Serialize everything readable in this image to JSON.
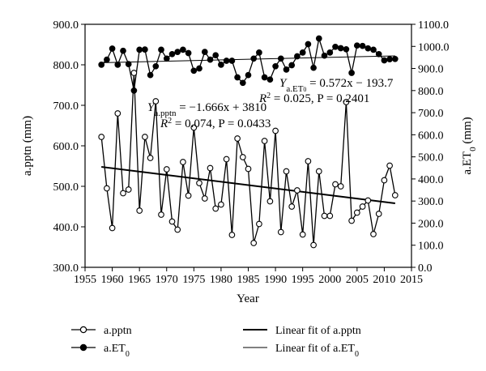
{
  "chart_data": {
    "type": "line",
    "x": [
      1958,
      1959,
      1960,
      1961,
      1962,
      1963,
      1964,
      1965,
      1966,
      1967,
      1968,
      1969,
      1970,
      1971,
      1972,
      1973,
      1974,
      1975,
      1976,
      1977,
      1978,
      1979,
      1980,
      1981,
      1982,
      1983,
      1984,
      1985,
      1986,
      1987,
      1988,
      1989,
      1990,
      1991,
      1992,
      1993,
      1994,
      1995,
      1996,
      1997,
      1998,
      1999,
      2000,
      2001,
      2002,
      2003,
      2004,
      2005,
      2006,
      2007,
      2008,
      2009,
      2010,
      2011,
      2012
    ],
    "series": [
      {
        "name": "a.pptn",
        "axis": "left",
        "marker": "open-circle",
        "values": [
          622,
          495,
          397,
          680,
          483,
          492,
          780,
          440,
          622,
          570,
          710,
          430,
          542,
          413,
          393,
          560,
          477,
          645,
          508,
          470,
          545,
          445,
          455,
          567,
          380,
          618,
          572,
          543,
          360,
          407,
          612,
          463,
          637,
          387,
          537,
          450,
          490,
          381,
          562,
          355,
          537,
          427,
          427,
          505,
          500,
          708,
          415,
          435,
          450,
          465,
          382,
          432,
          515,
          551,
          478
        ]
      },
      {
        "name": "a.ET0",
        "axis": "right",
        "marker": "filled-circle",
        "values": [
          917,
          940,
          990,
          917,
          980,
          920,
          800,
          985,
          986,
          870,
          910,
          985,
          945,
          965,
          975,
          985,
          970,
          890,
          900,
          975,
          940,
          960,
          917,
          935,
          935,
          860,
          835,
          870,
          945,
          972,
          860,
          850,
          910,
          945,
          895,
          915,
          955,
          972,
          1010,
          903,
          1036,
          958,
          972,
          998,
          992,
          987,
          880,
          1004,
          1002,
          991,
          985,
          965,
          937,
          942,
          943
        ]
      }
    ],
    "fits": [
      {
        "name": "Linear fit of a.pptn",
        "of": "a.pptn",
        "slope": -1.666,
        "intercept": 3810
      },
      {
        "name": "Linear fit of a.ET0",
        "of": "a.ET0",
        "slope": 0.572,
        "intercept": -193.7
      }
    ],
    "xlabel": "Year",
    "ylabel_left": "a.pptn (mm)",
    "ylabel_right": "a.ET0 (mm)",
    "xlim": [
      1955,
      2015
    ],
    "ylim_left": [
      300,
      900
    ],
    "ylim_right": [
      0,
      1100
    ],
    "xticks": [
      1955,
      1960,
      1965,
      1970,
      1975,
      1980,
      1985,
      1990,
      1995,
      2000,
      2005,
      2010,
      2015
    ],
    "xtick_labels": [
      "1955",
      "1960",
      "1965",
      "1970",
      "1975",
      "1980",
      "1985",
      "1990",
      "1995",
      "2000",
      "2005",
      "2010",
      "2015"
    ],
    "yticks_left": [
      300,
      400,
      500,
      600,
      700,
      800,
      900
    ],
    "ytick_labels_left": [
      "300.0",
      "400.0",
      "500.0",
      "600.0",
      "700.0",
      "800.0",
      "900.0"
    ],
    "yticks_right": [
      0,
      100,
      200,
      300,
      400,
      500,
      600,
      700,
      800,
      900,
      1000,
      1100
    ],
    "ytick_labels_right": [
      "0.0",
      "100.0",
      "200.0",
      "300.0",
      "400.0",
      "500.0",
      "600.0",
      "700.0",
      "800.0",
      "900.0",
      "1000.0",
      "1100.0"
    ],
    "annotations": {
      "et0_eq_prefix": "Y",
      "et0_eq_sub": "a.ET",
      "et0_eq_subsub": "0",
      "et0_eq_rhs": " = 0.572x − 193.7",
      "et0_stats_r": "R",
      "et0_stats_sup": "2",
      "et0_stats_rest": " = 0.025, P = 0.2401",
      "pptn_eq_prefix": "Y",
      "pptn_eq_sub": "a.pptn",
      "pptn_eq_rhs": " = −1.666x + 3810",
      "pptn_stats_r": "R",
      "pptn_stats_sup": "2",
      "pptn_stats_rest": " = 0.074, P = 0.0433"
    },
    "legend": {
      "placement": "bottom",
      "items": [
        {
          "label": "a.pptn",
          "marker": "open-circle"
        },
        {
          "label": "a.ET",
          "sub": "0",
          "marker": "filled-circle"
        },
        {
          "label": "Linear fit of a.pptn",
          "line": "thick"
        },
        {
          "label": "Linear fit of a.ET",
          "sub": "0",
          "line": "thin"
        }
      ]
    },
    "grid": false
  },
  "labels": {
    "xlabel": "Year",
    "ylabel_left": "a.pptn (mm)",
    "ylabel_right_main": "a.ET",
    "ylabel_right_sub": "0",
    "ylabel_right_unit": " (mm)"
  },
  "colors": {
    "line": "#000000",
    "marker_fill_open": "#ffffff",
    "marker_fill_closed": "#000000"
  }
}
